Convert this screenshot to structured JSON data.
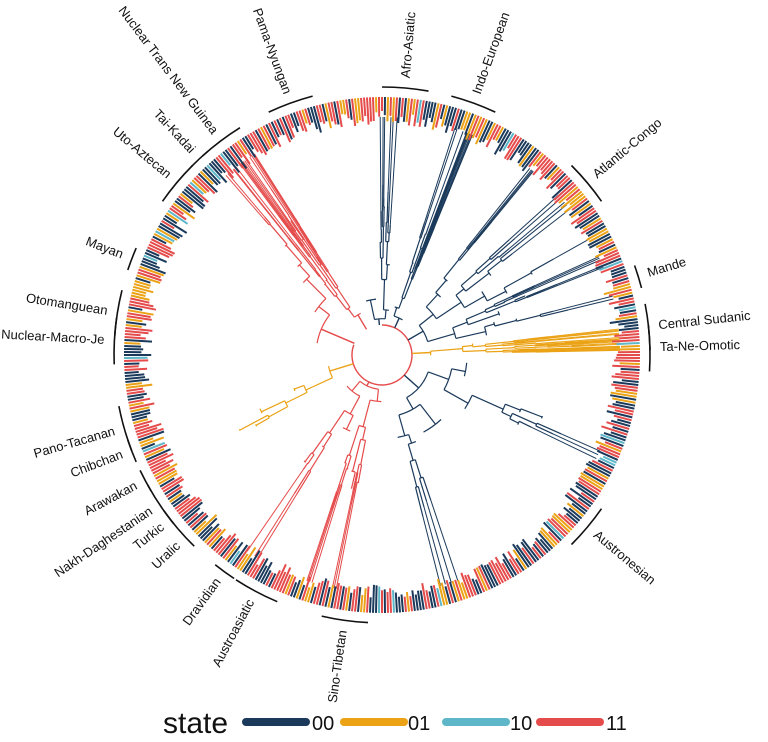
{
  "colors": {
    "00": "#1b3a5b",
    "01": "#eba215",
    "10": "#5db7c9",
    "11": "#e54b4b"
  },
  "families": [
    {
      "name": "Afro-Asiatic",
      "angle_deg": -85
    },
    {
      "name": "Indo-European",
      "angle_deg": -70
    },
    {
      "name": "Atlantic-Congo",
      "angle_deg": -40
    },
    {
      "name": "Mande",
      "angle_deg": -17
    },
    {
      "name": "Central Sudanic",
      "angle_deg": -6
    },
    {
      "name": "Ta-Ne-Omotic",
      "angle_deg": -1.5
    },
    {
      "name": "Austronesian",
      "angle_deg": 40
    },
    {
      "name": "Sino-Tibetan",
      "angle_deg": 98
    },
    {
      "name": "Austroasiatic",
      "angle_deg": 118
    },
    {
      "name": "Dravidian",
      "angle_deg": 126
    },
    {
      "name": "Uralic",
      "angle_deg": 137
    },
    {
      "name": "Turkic",
      "angle_deg": 142
    },
    {
      "name": "Nakh-Daghestanian",
      "angle_deg": 146
    },
    {
      "name": "Arawakan",
      "angle_deg": 152
    },
    {
      "name": "Chibchan",
      "angle_deg": 159
    },
    {
      "name": "Pano-Tacanan",
      "angle_deg": 164
    },
    {
      "name": "Nuclear-Macro-Je",
      "angle_deg": 183
    },
    {
      "name": "Otomanguean",
      "angle_deg": 189
    },
    {
      "name": "Mayan",
      "angle_deg": 201
    },
    {
      "name": "Uto-Aztecan",
      "angle_deg": 220
    },
    {
      "name": "Tai-Kadai",
      "angle_deg": 227
    },
    {
      "name": "Nuclear Trans New Guinea",
      "angle_deg": 233
    },
    {
      "name": "Pama-Nyungan",
      "angle_deg": 250
    }
  ],
  "legend": {
    "title": "state",
    "items": [
      {
        "state": "00",
        "label": "00"
      },
      {
        "state": "01",
        "label": "01"
      },
      {
        "state": "10",
        "label": "10"
      },
      {
        "state": "11",
        "label": "11"
      }
    ]
  }
}
